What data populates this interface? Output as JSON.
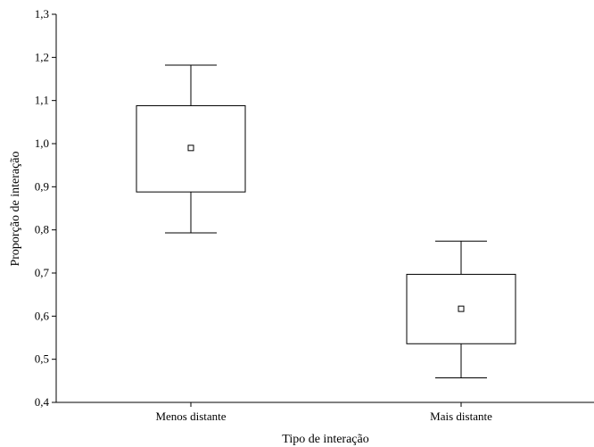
{
  "chart_data": {
    "type": "box",
    "title": "",
    "xlabel": "Tipo de interação",
    "ylabel": "Proporção de interação",
    "ylim": [
      0.4,
      1.3
    ],
    "yticks": [
      0.4,
      0.5,
      0.6,
      0.7,
      0.8,
      0.9,
      1.0,
      1.1,
      1.2,
      1.3
    ],
    "ytick_labels": [
      "0,4",
      "0,5",
      "0,6",
      "0,7",
      "0,8",
      "0,9",
      "1,0",
      "1,1",
      "1,2",
      "1,3"
    ],
    "categories": [
      "Menos distante",
      "Mais distante"
    ],
    "boxes": [
      {
        "category": "Menos distante",
        "mean": 0.99,
        "box_low": 0.888,
        "box_high": 1.088,
        "whisker_low": 0.793,
        "whisker_high": 1.182
      },
      {
        "category": "Mais distante",
        "mean": 0.617,
        "box_low": 0.536,
        "box_high": 0.697,
        "whisker_low": 0.457,
        "whisker_high": 0.774
      }
    ],
    "grid": false,
    "legend": "none"
  }
}
